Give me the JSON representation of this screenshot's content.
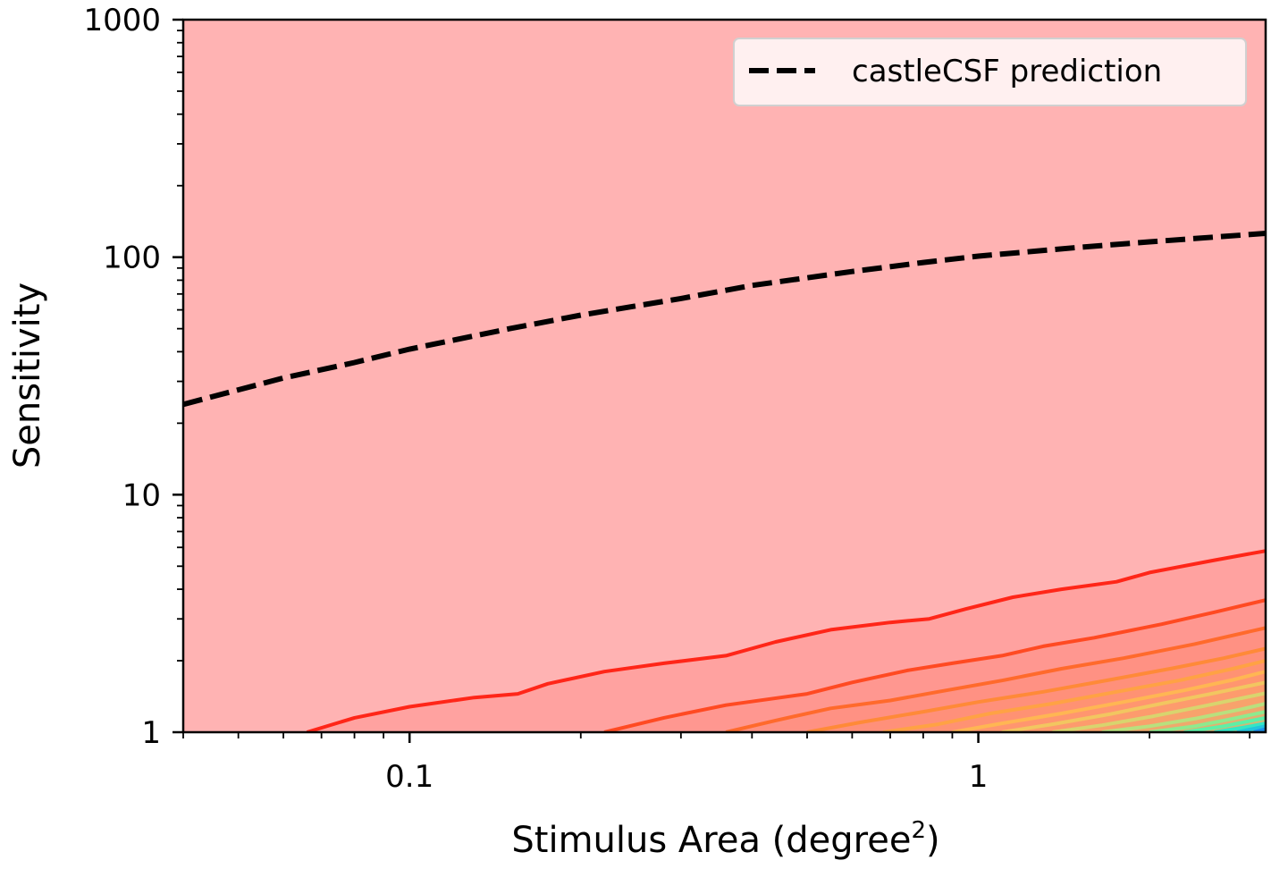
{
  "chart_data": {
    "type": "line",
    "xlabel": "Stimulus Area (degree",
    "xlabel_superscript": "2",
    "xlabel_suffix": ")",
    "ylabel": "Sensitivity",
    "xscale": "log",
    "yscale": "log",
    "xlim": [
      0.04,
      3.2
    ],
    "ylim": [
      1,
      1000
    ],
    "x_tick_labels": [
      {
        "value": 0.1,
        "label": "0.1"
      },
      {
        "value": 1,
        "label": "1"
      }
    ],
    "y_tick_labels": [
      {
        "value": 1,
        "label": "1"
      },
      {
        "value": 10,
        "label": "10"
      },
      {
        "value": 100,
        "label": "100"
      },
      {
        "value": 1000,
        "label": "1000"
      }
    ],
    "legend": {
      "placement": "top-right",
      "entries": [
        "castleCSF prediction"
      ]
    },
    "background_color": "#ffb3b3",
    "series": [
      {
        "name": "castleCSF prediction",
        "style": "dashed",
        "color": "#000000",
        "x": [
          0.04,
          0.06,
          0.08,
          0.1,
          0.15,
          0.2,
          0.3,
          0.4,
          0.6,
          0.8,
          1.0,
          1.5,
          2.0,
          3.2
        ],
        "y": [
          24,
          31,
          36,
          41,
          50,
          57,
          67,
          76,
          87,
          95,
          101,
          110,
          116,
          126
        ]
      }
    ],
    "contours": [
      {
        "color": "#ff2618",
        "x": [
          0.066,
          0.08,
          0.1,
          0.13,
          0.155,
          0.175,
          0.22,
          0.28,
          0.36,
          0.44,
          0.55,
          0.7,
          0.82,
          0.95,
          1.15,
          1.4,
          1.75,
          2.0,
          2.6,
          3.2
        ],
        "y": [
          1.0,
          1.15,
          1.28,
          1.4,
          1.45,
          1.6,
          1.8,
          1.95,
          2.1,
          2.4,
          2.7,
          2.9,
          3.0,
          3.3,
          3.7,
          4.0,
          4.3,
          4.7,
          5.3,
          5.8
        ]
      },
      {
        "color": "#ff4a22",
        "x": [
          0.22,
          0.28,
          0.36,
          0.5,
          0.6,
          0.75,
          0.9,
          1.1,
          1.3,
          1.6,
          2.1,
          2.6,
          3.2
        ],
        "y": [
          1.0,
          1.15,
          1.3,
          1.45,
          1.62,
          1.82,
          1.95,
          2.1,
          2.3,
          2.5,
          2.85,
          3.2,
          3.6
        ]
      },
      {
        "color": "#ff6a2c",
        "x": [
          0.36,
          0.44,
          0.55,
          0.7,
          0.85,
          1.1,
          1.4,
          1.8,
          2.4,
          3.2
        ],
        "y": [
          1.0,
          1.12,
          1.26,
          1.36,
          1.48,
          1.65,
          1.85,
          2.05,
          2.35,
          2.75
        ]
      },
      {
        "color": "#ff8a38",
        "x": [
          0.5,
          0.62,
          0.8,
          1.0,
          1.3,
          1.7,
          2.2,
          2.7,
          3.2
        ],
        "y": [
          1.0,
          1.1,
          1.22,
          1.34,
          1.48,
          1.66,
          1.86,
          2.05,
          2.25
        ]
      },
      {
        "color": "#ffa244",
        "x": [
          0.68,
          0.85,
          1.05,
          1.35,
          1.75,
          2.25,
          2.8,
          3.2
        ],
        "y": [
          1.0,
          1.08,
          1.2,
          1.32,
          1.48,
          1.65,
          1.85,
          2.0
        ]
      },
      {
        "color": "#ffb653",
        "x": [
          0.9,
          1.1,
          1.4,
          1.8,
          2.3,
          2.8,
          3.2
        ],
        "y": [
          1.0,
          1.09,
          1.2,
          1.34,
          1.5,
          1.66,
          1.8
        ]
      },
      {
        "color": "#f2c660",
        "x": [
          1.1,
          1.35,
          1.7,
          2.1,
          2.6,
          3.2
        ],
        "y": [
          1.0,
          1.08,
          1.19,
          1.32,
          1.46,
          1.62
        ]
      },
      {
        "color": "#d8d46e",
        "x": [
          1.35,
          1.65,
          2.0,
          2.5,
          3.2
        ],
        "y": [
          1.0,
          1.07,
          1.16,
          1.29,
          1.46
        ]
      },
      {
        "color": "#b8e07e",
        "x": [
          1.65,
          2.0,
          2.4,
          2.9,
          3.2
        ],
        "y": [
          1.0,
          1.06,
          1.14,
          1.25,
          1.32
        ]
      },
      {
        "color": "#8eea8e",
        "x": [
          2.0,
          2.4,
          2.8,
          3.2
        ],
        "y": [
          1.0,
          1.06,
          1.14,
          1.22
        ]
      },
      {
        "color": "#5ef0a6",
        "x": [
          2.3,
          2.7,
          3.2
        ],
        "y": [
          1.0,
          1.06,
          1.15
        ]
      },
      {
        "color": "#34e6c4",
        "x": [
          2.6,
          2.95,
          3.2
        ],
        "y": [
          1.0,
          1.05,
          1.09
        ]
      },
      {
        "color": "#22c4dc",
        "x": [
          2.85,
          3.2
        ],
        "y": [
          1.0,
          1.06
        ]
      },
      {
        "color": "#1c8ee8",
        "x": [
          3.05,
          3.2
        ],
        "y": [
          1.0,
          1.03
        ]
      }
    ]
  }
}
